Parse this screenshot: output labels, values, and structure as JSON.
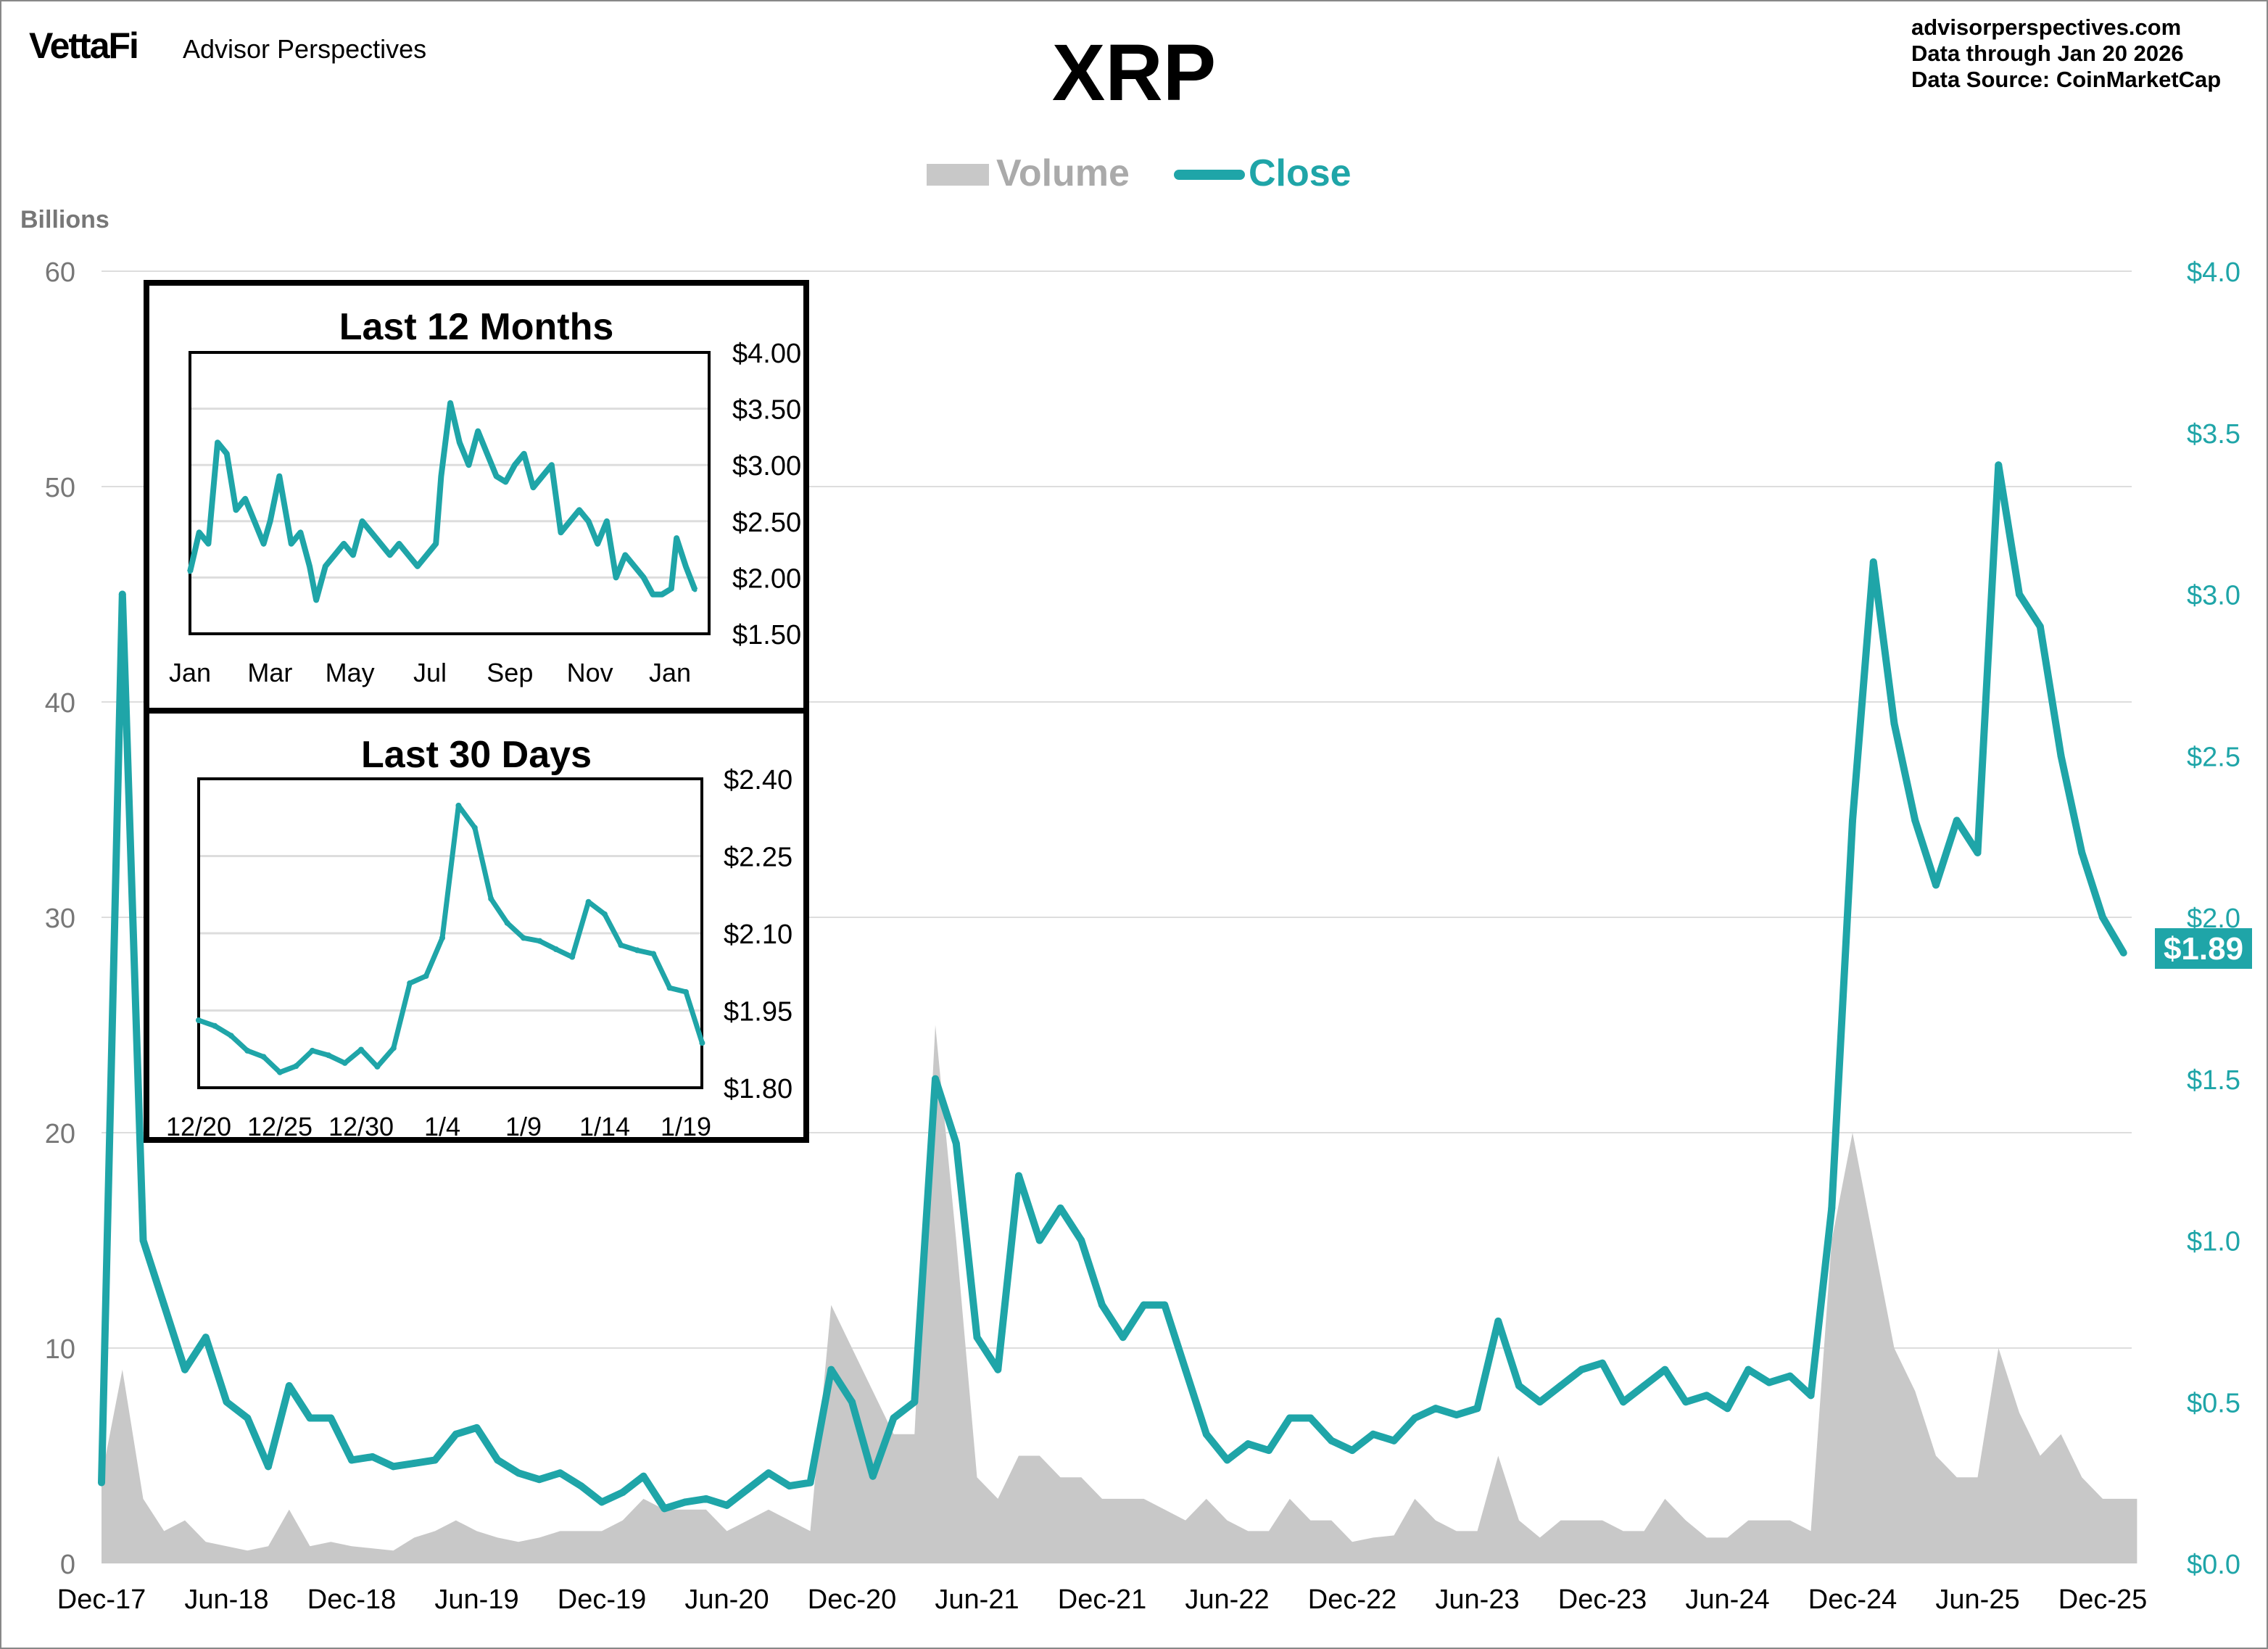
{
  "header": {
    "logo": "VettaFi",
    "brand": "Advisor Perspectives",
    "title": "XRP",
    "site": "advisorperspectives.com",
    "data_through": "Data through  Jan 20 2026",
    "data_source": "Data Source:  CoinMarketCap"
  },
  "colors": {
    "close": "#1fa5a8",
    "volume": "#c8c8c8",
    "grid": "#dddddd",
    "left_axis_text": "#777777"
  },
  "last_price_badge": "$1.89",
  "chart_data": [
    {
      "type": "area+line",
      "title": "XRP",
      "legend": {
        "placement": "top-center",
        "entries": [
          "Volume",
          "Close"
        ]
      },
      "ylabel_left": "Billions",
      "ylim_left": [
        0,
        60
      ],
      "yticks_left": [
        "0",
        "10",
        "20",
        "30",
        "40",
        "50",
        "60"
      ],
      "ylim_right": [
        0,
        4.0
      ],
      "yticks_right": [
        "$0.0",
        "$0.5",
        "$1.0",
        "$1.5",
        "$2.0",
        "$2.5",
        "$3.0",
        "$3.5",
        "$4.0"
      ],
      "xticks": [
        "Dec-17",
        "Jun-18",
        "Dec-18",
        "Jun-19",
        "Dec-19",
        "Jun-20",
        "Dec-20",
        "Jun-21",
        "Dec-21",
        "Jun-22",
        "Dec-22",
        "Jun-23",
        "Dec-23",
        "Jun-24",
        "Dec-24",
        "Jun-25",
        "Dec-25"
      ],
      "grid": true,
      "x": [
        "2017-12",
        "2018-01",
        "2018-02",
        "2018-03",
        "2018-04",
        "2018-05",
        "2018-06",
        "2018-07",
        "2018-08",
        "2018-09",
        "2018-10",
        "2018-11",
        "2018-12",
        "2019-01",
        "2019-02",
        "2019-03",
        "2019-04",
        "2019-05",
        "2019-06",
        "2019-07",
        "2019-08",
        "2019-09",
        "2019-10",
        "2019-11",
        "2019-12",
        "2020-01",
        "2020-02",
        "2020-03",
        "2020-04",
        "2020-05",
        "2020-06",
        "2020-07",
        "2020-08",
        "2020-09",
        "2020-10",
        "2020-11",
        "2020-12",
        "2021-01",
        "2021-02",
        "2021-03",
        "2021-04",
        "2021-05",
        "2021-06",
        "2021-07",
        "2021-08",
        "2021-09",
        "2021-10",
        "2021-11",
        "2021-12",
        "2022-01",
        "2022-02",
        "2022-03",
        "2022-04",
        "2022-05",
        "2022-06",
        "2022-07",
        "2022-08",
        "2022-09",
        "2022-10",
        "2022-11",
        "2022-12",
        "2023-01",
        "2023-02",
        "2023-03",
        "2023-04",
        "2023-05",
        "2023-06",
        "2023-07",
        "2023-08",
        "2023-09",
        "2023-10",
        "2023-11",
        "2023-12",
        "2024-01",
        "2024-02",
        "2024-03",
        "2024-04",
        "2024-05",
        "2024-06",
        "2024-07",
        "2024-08",
        "2024-09",
        "2024-10",
        "2024-11",
        "2024-12",
        "2025-01",
        "2025-02",
        "2025-03",
        "2025-04",
        "2025-05",
        "2025-06",
        "2025-07",
        "2025-08",
        "2025-09",
        "2025-10",
        "2025-11",
        "2025-12",
        "2026-01"
      ],
      "series": [
        {
          "name": "Close",
          "axis": "right",
          "values": [
            0.25,
            3.0,
            1.0,
            0.8,
            0.6,
            0.7,
            0.5,
            0.45,
            0.3,
            0.55,
            0.45,
            0.45,
            0.32,
            0.33,
            0.3,
            0.31,
            0.32,
            0.4,
            0.42,
            0.32,
            0.28,
            0.26,
            0.28,
            0.24,
            0.19,
            0.22,
            0.27,
            0.17,
            0.19,
            0.2,
            0.18,
            0.23,
            0.28,
            0.24,
            0.25,
            0.6,
            0.5,
            0.27,
            0.45,
            0.5,
            1.5,
            1.3,
            0.7,
            0.6,
            1.2,
            1.0,
            1.1,
            1.0,
            0.8,
            0.7,
            0.8,
            0.8,
            0.6,
            0.4,
            0.32,
            0.37,
            0.35,
            0.45,
            0.45,
            0.38,
            0.35,
            0.4,
            0.38,
            0.45,
            0.48,
            0.46,
            0.48,
            0.75,
            0.55,
            0.5,
            0.55,
            0.6,
            0.62,
            0.5,
            0.55,
            0.6,
            0.5,
            0.52,
            0.48,
            0.6,
            0.56,
            0.58,
            0.52,
            1.1,
            2.3,
            3.1,
            2.6,
            2.3,
            2.1,
            2.3,
            2.2,
            3.4,
            3.0,
            2.9,
            2.5,
            2.2,
            2.0,
            1.89
          ]
        },
        {
          "name": "Volume",
          "axis": "left",
          "values": [
            4,
            9,
            3,
            1.5,
            2,
            1,
            0.8,
            0.6,
            0.8,
            2.5,
            0.8,
            1,
            0.8,
            0.7,
            0.6,
            1.2,
            1.5,
            2,
            1.5,
            1.2,
            1,
            1.2,
            1.5,
            1.5,
            1.5,
            2,
            3,
            2.5,
            2.5,
            2.5,
            1.5,
            2,
            2.5,
            2,
            1.5,
            12,
            10,
            8,
            6,
            6,
            25,
            15,
            4,
            3,
            5,
            5,
            4,
            4,
            3,
            3,
            3,
            2.5,
            2,
            3,
            2,
            1.5,
            1.5,
            3,
            2,
            2,
            1,
            1.2,
            1.3,
            3,
            2,
            1.5,
            1.5,
            5,
            2,
            1.2,
            2,
            2,
            2,
            1.5,
            1.5,
            3,
            2,
            1.2,
            1.2,
            2,
            2,
            2,
            1.5,
            15,
            20,
            15,
            10,
            8,
            5,
            4,
            4,
            10,
            7,
            5,
            6,
            4,
            3,
            3
          ]
        }
      ]
    },
    {
      "type": "line",
      "title": "Last 12 Months",
      "ylim": [
        1.5,
        4.0
      ],
      "yticks": [
        "$4.00",
        "$3.50",
        "$3.00",
        "$2.50",
        "$2.00",
        "$1.50"
      ],
      "xticks": [
        "Jan",
        "Mar",
        "May",
        "Jul",
        "Sep",
        "Nov",
        "Jan"
      ],
      "grid": true,
      "x": [
        "2025-01-01",
        "2025-01-08",
        "2025-01-15",
        "2025-01-22",
        "2025-01-29",
        "2025-02-05",
        "2025-02-12",
        "2025-02-19",
        "2025-02-26",
        "2025-03-03",
        "2025-03-10",
        "2025-03-19",
        "2025-03-26",
        "2025-04-02",
        "2025-04-07",
        "2025-04-14",
        "2025-04-21",
        "2025-04-28",
        "2025-05-05",
        "2025-05-12",
        "2025-05-19",
        "2025-05-26",
        "2025-06-02",
        "2025-06-09",
        "2025-06-16",
        "2025-06-23",
        "2025-06-30",
        "2025-07-07",
        "2025-07-11",
        "2025-07-18",
        "2025-07-25",
        "2025-08-01",
        "2025-08-08",
        "2025-08-15",
        "2025-08-22",
        "2025-08-29",
        "2025-09-05",
        "2025-09-12",
        "2025-09-19",
        "2025-09-26",
        "2025-10-03",
        "2025-10-10",
        "2025-10-17",
        "2025-10-24",
        "2025-10-31",
        "2025-11-07",
        "2025-11-14",
        "2025-11-21",
        "2025-11-28",
        "2025-12-05",
        "2025-12-12",
        "2025-12-19",
        "2025-12-26",
        "2026-01-02",
        "2026-01-06",
        "2026-01-13",
        "2026-01-20"
      ],
      "values": [
        2.05,
        2.4,
        2.3,
        3.2,
        3.1,
        2.6,
        2.7,
        2.5,
        2.3,
        2.5,
        2.9,
        2.3,
        2.4,
        2.1,
        1.8,
        2.1,
        2.2,
        2.3,
        2.2,
        2.5,
        2.4,
        2.3,
        2.2,
        2.3,
        2.2,
        2.1,
        2.2,
        2.3,
        2.9,
        3.55,
        3.2,
        3.0,
        3.3,
        3.1,
        2.9,
        2.85,
        3.0,
        3.1,
        2.8,
        2.9,
        3.0,
        2.4,
        2.5,
        2.6,
        2.5,
        2.3,
        2.5,
        2.0,
        2.2,
        2.1,
        2.0,
        1.85,
        1.85,
        1.9,
        2.35,
        2.1,
        1.89
      ]
    },
    {
      "type": "line",
      "title": "Last 30 Days",
      "ylim": [
        1.8,
        2.4
      ],
      "yticks": [
        "$2.40",
        "$2.25",
        "$2.10",
        "$1.95",
        "$1.80"
      ],
      "xticks": [
        "12/20",
        "12/25",
        "12/30",
        "1/4",
        "1/9",
        "1/14",
        "1/19"
      ],
      "grid": true,
      "x": [
        "12/20",
        "12/21",
        "12/22",
        "12/23",
        "12/24",
        "12/25",
        "12/26",
        "12/27",
        "12/28",
        "12/29",
        "12/30",
        "12/31",
        "1/1",
        "1/2",
        "1/3",
        "1/4",
        "1/5",
        "1/6",
        "1/7",
        "1/8",
        "1/9",
        "1/10",
        "1/11",
        "1/12",
        "1/13",
        "1/14",
        "1/15",
        "1/16",
        "1/17",
        "1/18",
        "1/19",
        "1/20"
      ],
      "values": [
        1.931,
        1.92,
        1.901,
        1.872,
        1.86,
        1.83,
        1.842,
        1.872,
        1.863,
        1.848,
        1.874,
        1.841,
        1.877,
        2.003,
        2.017,
        2.091,
        2.348,
        2.305,
        2.167,
        2.12,
        2.091,
        2.085,
        2.069,
        2.054,
        2.161,
        2.137,
        2.077,
        2.067,
        2.06,
        1.994,
        1.986,
        1.887
      ]
    }
  ]
}
